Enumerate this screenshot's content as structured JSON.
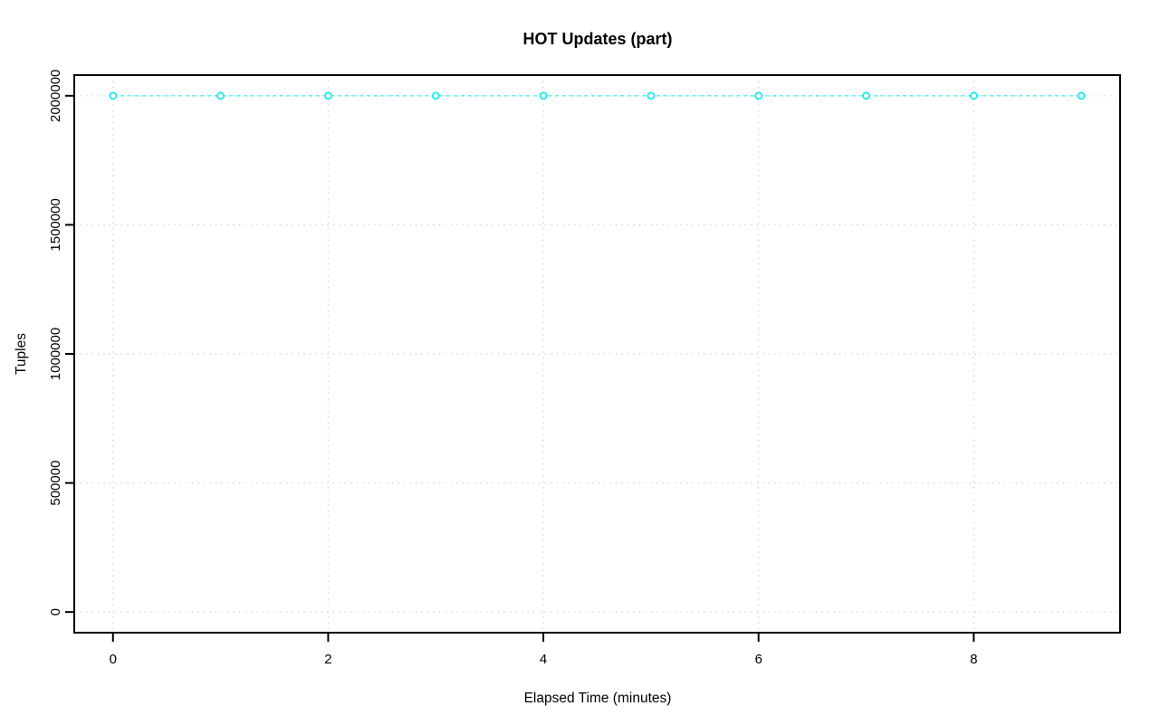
{
  "figure": {
    "background": "#ffffff",
    "kind": "r-base-graphics-plot"
  },
  "chart_data": {
    "type": "line",
    "title": "HOT Updates (part)",
    "xlabel": "Elapsed Time (minutes)",
    "ylabel": "Tuples",
    "x": [
      0,
      1,
      2,
      3,
      4,
      5,
      6,
      7,
      8,
      9
    ],
    "series": [
      {
        "name": "HOT Updates (part)",
        "values": [
          2000000,
          2000000,
          2000000,
          2000000,
          2000000,
          2000000,
          2000000,
          2000000,
          2000000,
          2000000
        ]
      }
    ],
    "x_ticks": {
      "values": [
        0,
        2,
        4,
        6,
        8
      ],
      "labels": [
        "0",
        "2",
        "4",
        "6",
        "8"
      ]
    },
    "y_ticks": {
      "values": [
        0,
        500000,
        1000000,
        1500000,
        2000000
      ],
      "labels": [
        "0",
        "500000",
        "1000000",
        "1500000",
        "2000000"
      ]
    },
    "xlim": [
      -0.36,
      9.36
    ],
    "ylim": [
      -80000,
      2080000
    ],
    "grid": true,
    "grid_style": "dotted",
    "line_style": "dashed",
    "marker": "open-circle",
    "legend_position": "none",
    "colors": {
      "line": "#00e9e9",
      "marker_fill": "#ffffff",
      "grid": "#c8c8c8",
      "axis": "#000000",
      "text": "#000000"
    }
  }
}
